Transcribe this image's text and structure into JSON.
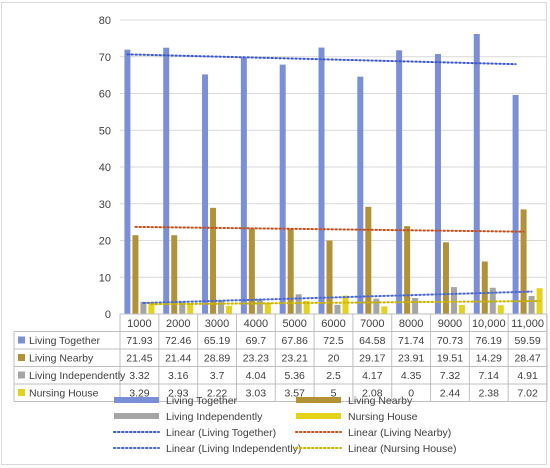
{
  "colors": {
    "living_together": "#7b8fd8",
    "living_nearby": "#b39237",
    "living_independently": "#a5a5a5",
    "nursing_house": "#e6d21a",
    "trend_together": "#3c58c8",
    "trend_nearby": "#c0501f",
    "trend_independently": "#4a67d0",
    "trend_nursing": "#c9b400",
    "grid": "#d9d9d9",
    "text": "#404040"
  },
  "chart_data": {
    "type": "bar",
    "categories": [
      "1000",
      "2000",
      "3000",
      "4000",
      "5000",
      "6000",
      "7000",
      "8000",
      "9000",
      "10,000",
      "11,000"
    ],
    "ylim": [
      0,
      80
    ],
    "yticks": [
      0,
      10,
      20,
      30,
      40,
      50,
      60,
      70,
      80
    ],
    "grid": true,
    "legend_position": "bottom",
    "series": [
      {
        "name": "Living Together",
        "values": [
          71.93,
          72.46,
          65.19,
          69.7,
          67.86,
          72.5,
          64.58,
          71.74,
          70.73,
          76.19,
          59.59
        ]
      },
      {
        "name": "Living Nearby",
        "values": [
          21.45,
          21.44,
          28.89,
          23.23,
          23.21,
          20,
          29.17,
          23.91,
          19.51,
          14.29,
          28.47
        ]
      },
      {
        "name": "Living Independently",
        "values": [
          3.32,
          3.16,
          3.7,
          4.04,
          5.36,
          2.5,
          4.17,
          4.35,
          7.32,
          7.14,
          4.91
        ]
      },
      {
        "name": "Nursing House",
        "values": [
          3.29,
          2.93,
          2.22,
          3.03,
          3.57,
          5,
          2.08,
          0,
          2.44,
          2.38,
          7.02
        ]
      }
    ],
    "table_values": [
      [
        "71.93",
        "72.46",
        "65.19",
        "69.7",
        "67.86",
        "72.5",
        "64.58",
        "71.74",
        "70.73",
        "76.19",
        "59.59"
      ],
      [
        "21.45",
        "21.44",
        "28.89",
        "23.23",
        "23.21",
        "20",
        "29.17",
        "23.91",
        "19.51",
        "14.29",
        "28.47"
      ],
      [
        "3.32",
        "3.16",
        "3.7",
        "4.04",
        "5.36",
        "2.5",
        "4.17",
        "4.35",
        "7.32",
        "7.14",
        "4.91"
      ],
      [
        "3.29",
        "2.93",
        "2.22",
        "3.03",
        "3.57",
        "5",
        "2.08",
        "0",
        "2.44",
        "2.38",
        "7.02"
      ]
    ],
    "legend": [
      {
        "label": "Living Together",
        "kind": "bar",
        "color_key": "living_together"
      },
      {
        "label": "Living Nearby",
        "kind": "bar",
        "color_key": "living_nearby"
      },
      {
        "label": "Living Independently",
        "kind": "bar",
        "color_key": "living_independently"
      },
      {
        "label": "Nursing House",
        "kind": "bar",
        "color_key": "nursing_house"
      },
      {
        "label": "Linear (Living Together)",
        "kind": "dotted",
        "color_key": "trend_together"
      },
      {
        "label": "Linear (Living Nearby)",
        "kind": "dotted",
        "color_key": "trend_nearby"
      },
      {
        "label": "Linear (Living Independently)",
        "kind": "dotted",
        "color_key": "trend_independently"
      },
      {
        "label": "Linear (Nursing House)",
        "kind": "dotted",
        "color_key": "trend_nursing"
      }
    ]
  }
}
